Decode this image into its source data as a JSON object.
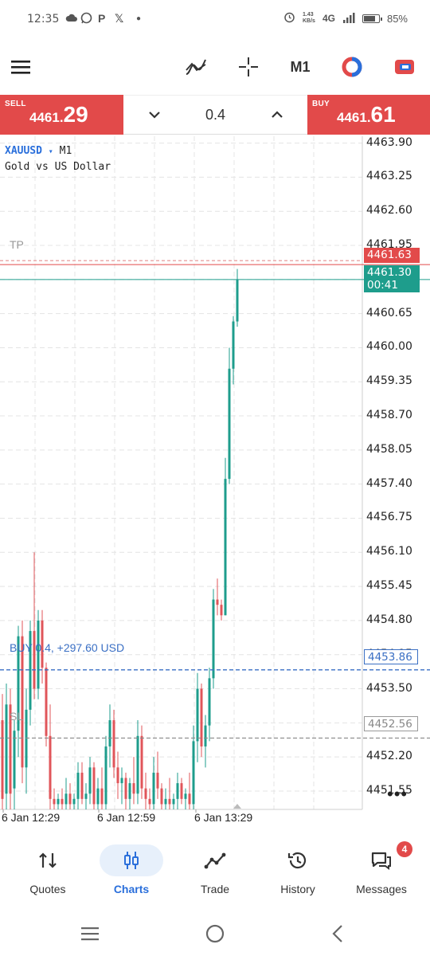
{
  "status_bar": {
    "time": "12:35",
    "notification_icons": [
      "cloud-icon",
      "whatsapp-icon",
      "p-icon",
      "x-icon",
      "dot-icon"
    ],
    "network_speed_value": "1.43",
    "network_speed_unit": "KB/s",
    "network_type": "4G",
    "battery": "85%"
  },
  "toolbar": {
    "menu_icon": "hamburger-menu-icon",
    "indicator_icon": "indicators-icon",
    "crosshair_icon": "crosshair-icon",
    "timeframe": "M1",
    "one_click_icon": "one-click-trading-icon",
    "trade_icon": "new-order-icon"
  },
  "trade_bar": {
    "sell_label": "SELL",
    "sell_price_main": "4461.",
    "sell_price_big": "29",
    "volume": "0.4",
    "buy_label": "BUY",
    "buy_price_main": "4461.",
    "buy_price_big": "61",
    "colors": {
      "action": "#e24a4a"
    }
  },
  "chart": {
    "symbol": "XAUUSD",
    "symbol_arrow": "▾",
    "timeframe": "M1",
    "description": "Gold vs US Dollar",
    "tp_label": "TP",
    "sl_label": "SL",
    "position_label": "BUY 0.4,   +297.60 USD",
    "ask_tag": "4461.63",
    "bid_tag": "4461.30",
    "countdown": "00:41",
    "open_price_tag": "4453.86",
    "sl_tag": "4452.56",
    "more_icon": "more-dots-icon",
    "colors": {
      "bull": "#1e9d8c",
      "bear": "#e0555a",
      "ask": "#e24a4a",
      "bid": "#1e9d8c",
      "position": "#3a6fc4",
      "sl": "#999999"
    }
  },
  "chart_data": {
    "type": "candlestick",
    "symbol": "XAUUSD",
    "timeframe": "M1",
    "ylim": [
      4451.2,
      4464.0
    ],
    "y_ticks": [
      "4463.90",
      "4463.25",
      "4462.60",
      "4461.95",
      "4461.30",
      "4460.65",
      "4460.00",
      "4459.35",
      "4458.70",
      "4458.05",
      "4457.40",
      "4456.75",
      "4456.10",
      "4455.45",
      "4454.80",
      "4454.15",
      "4453.50",
      "4452.85",
      "4452.20",
      "4451.55"
    ],
    "x_ticks": [
      "6 Jan 12:29",
      "6 Jan 12:59",
      "6 Jan 13:29"
    ],
    "levels": {
      "tp": 4461.66,
      "ask": 4461.63,
      "bid": 4461.3,
      "open": 4453.86,
      "sl": 4452.56
    },
    "candles": [
      {
        "o": 4452.9,
        "h": 4453.4,
        "l": 4451.2,
        "c": 4451.4
      },
      {
        "o": 4451.5,
        "h": 4453.6,
        "l": 4451.2,
        "c": 4453.2
      },
      {
        "o": 4453.2,
        "h": 4453.5,
        "l": 4451.2,
        "c": 4451.5
      },
      {
        "o": 4451.6,
        "h": 4452.9,
        "l": 4451.2,
        "c": 4452.7
      },
      {
        "o": 4452.7,
        "h": 4454.7,
        "l": 4452.2,
        "c": 4454.5
      },
      {
        "o": 4454.5,
        "h": 4454.8,
        "l": 4451.7,
        "c": 4452.0
      },
      {
        "o": 4452.0,
        "h": 4453.5,
        "l": 4451.5,
        "c": 4453.1
      },
      {
        "o": 4453.1,
        "h": 4454.8,
        "l": 4452.8,
        "c": 4454.6
      },
      {
        "o": 4454.6,
        "h": 4456.1,
        "l": 4453.3,
        "c": 4453.5
      },
      {
        "o": 4453.5,
        "h": 4455.0,
        "l": 4453.3,
        "c": 4454.8
      },
      {
        "o": 4454.8,
        "h": 4455.0,
        "l": 4453.6,
        "c": 4453.9
      },
      {
        "o": 4453.9,
        "h": 4454.0,
        "l": 4452.4,
        "c": 4452.6
      },
      {
        "o": 4452.6,
        "h": 4453.2,
        "l": 4451.2,
        "c": 4451.4
      },
      {
        "o": 4451.4,
        "h": 4451.6,
        "l": 4451.2,
        "c": 4451.3
      },
      {
        "o": 4451.3,
        "h": 4451.5,
        "l": 4451.2,
        "c": 4451.4
      },
      {
        "o": 4451.4,
        "h": 4451.6,
        "l": 4451.2,
        "c": 4451.3
      },
      {
        "o": 4451.3,
        "h": 4451.8,
        "l": 4451.2,
        "c": 4451.5
      },
      {
        "o": 4451.5,
        "h": 4451.7,
        "l": 4451.2,
        "c": 4451.3
      },
      {
        "o": 4451.3,
        "h": 4451.5,
        "l": 4451.2,
        "c": 4451.4
      },
      {
        "o": 4451.4,
        "h": 4452.1,
        "l": 4451.2,
        "c": 4451.9
      },
      {
        "o": 4451.9,
        "h": 4452.1,
        "l": 4451.3,
        "c": 4451.4
      },
      {
        "o": 4451.4,
        "h": 4451.7,
        "l": 4451.2,
        "c": 4451.5
      },
      {
        "o": 4451.5,
        "h": 4452.2,
        "l": 4451.3,
        "c": 4452.0
      },
      {
        "o": 4452.0,
        "h": 4452.1,
        "l": 4451.2,
        "c": 4451.3
      },
      {
        "o": 4451.3,
        "h": 4451.8,
        "l": 4451.2,
        "c": 4451.6
      },
      {
        "o": 4451.6,
        "h": 4452.0,
        "l": 4451.2,
        "c": 4451.3
      },
      {
        "o": 4451.3,
        "h": 4452.6,
        "l": 4451.2,
        "c": 4452.4
      },
      {
        "o": 4452.4,
        "h": 4453.2,
        "l": 4452.0,
        "c": 4452.9
      },
      {
        "o": 4452.9,
        "h": 4453.1,
        "l": 4451.8,
        "c": 4452.0
      },
      {
        "o": 4452.0,
        "h": 4452.3,
        "l": 4451.4,
        "c": 4451.7
      },
      {
        "o": 4451.7,
        "h": 4452.0,
        "l": 4451.3,
        "c": 4451.8
      },
      {
        "o": 4451.8,
        "h": 4451.9,
        "l": 4451.2,
        "c": 4451.4
      },
      {
        "o": 4451.4,
        "h": 4451.8,
        "l": 4451.2,
        "c": 4451.7
      },
      {
        "o": 4451.7,
        "h": 4452.2,
        "l": 4451.3,
        "c": 4451.5
      },
      {
        "o": 4451.5,
        "h": 4452.9,
        "l": 4451.3,
        "c": 4452.6
      },
      {
        "o": 4452.6,
        "h": 4452.8,
        "l": 4451.4,
        "c": 4451.6
      },
      {
        "o": 4451.6,
        "h": 4451.9,
        "l": 4451.2,
        "c": 4451.4
      },
      {
        "o": 4451.4,
        "h": 4451.6,
        "l": 4451.2,
        "c": 4451.3
      },
      {
        "o": 4451.3,
        "h": 4452.2,
        "l": 4451.2,
        "c": 4451.9
      },
      {
        "o": 4451.9,
        "h": 4452.3,
        "l": 4451.4,
        "c": 4451.6
      },
      {
        "o": 4451.6,
        "h": 4451.7,
        "l": 4451.2,
        "c": 4451.3
      },
      {
        "o": 4451.3,
        "h": 4451.6,
        "l": 4451.2,
        "c": 4451.4
      },
      {
        "o": 4451.4,
        "h": 4451.8,
        "l": 4451.2,
        "c": 4451.3
      },
      {
        "o": 4451.3,
        "h": 4451.5,
        "l": 4451.2,
        "c": 4451.4
      },
      {
        "o": 4451.4,
        "h": 4451.9,
        "l": 4451.2,
        "c": 4451.7
      },
      {
        "o": 4451.7,
        "h": 4451.8,
        "l": 4451.3,
        "c": 4451.4
      },
      {
        "o": 4451.4,
        "h": 4451.6,
        "l": 4451.2,
        "c": 4451.5
      },
      {
        "o": 4451.5,
        "h": 4451.9,
        "l": 4451.2,
        "c": 4451.3
      },
      {
        "o": 4451.3,
        "h": 4452.8,
        "l": 4451.2,
        "c": 4452.5
      },
      {
        "o": 4452.5,
        "h": 4453.8,
        "l": 4452.1,
        "c": 4453.5
      },
      {
        "o": 4453.5,
        "h": 4453.6,
        "l": 4452.2,
        "c": 4452.4
      },
      {
        "o": 4452.4,
        "h": 4453.0,
        "l": 4452.0,
        "c": 4452.8
      },
      {
        "o": 4452.8,
        "h": 4453.9,
        "l": 4452.5,
        "c": 4453.7
      },
      {
        "o": 4453.7,
        "h": 4455.4,
        "l": 4453.5,
        "c": 4455.2
      },
      {
        "o": 4455.2,
        "h": 4455.6,
        "l": 4454.9,
        "c": 4455.1
      },
      {
        "o": 4455.1,
        "h": 4455.2,
        "l": 4454.8,
        "c": 4454.9
      },
      {
        "o": 4454.9,
        "h": 4457.9,
        "l": 4454.9,
        "c": 4457.5
      },
      {
        "o": 4457.5,
        "h": 4460.0,
        "l": 4457.4,
        "c": 4459.6
      },
      {
        "o": 4459.6,
        "h": 4460.6,
        "l": 4459.3,
        "c": 4460.5
      },
      {
        "o": 4460.5,
        "h": 4461.5,
        "l": 4460.4,
        "c": 4461.3
      }
    ]
  },
  "bottom_nav": {
    "items": [
      {
        "label": "Quotes",
        "icon": "quotes-arrows-icon"
      },
      {
        "label": "Charts",
        "icon": "charts-candles-icon"
      },
      {
        "label": "Trade",
        "icon": "trade-line-icon"
      },
      {
        "label": "History",
        "icon": "history-clock-icon"
      },
      {
        "label": "Messages",
        "icon": "messages-chat-icon",
        "badge": "4"
      }
    ],
    "active": "Charts",
    "colors": {
      "active": "#2a6fdb",
      "active_bg": "#e7f0fb"
    }
  },
  "system_nav": {
    "recents_icon": "recents-icon",
    "home_icon": "home-circle-icon",
    "back_icon": "back-chevron-icon"
  }
}
